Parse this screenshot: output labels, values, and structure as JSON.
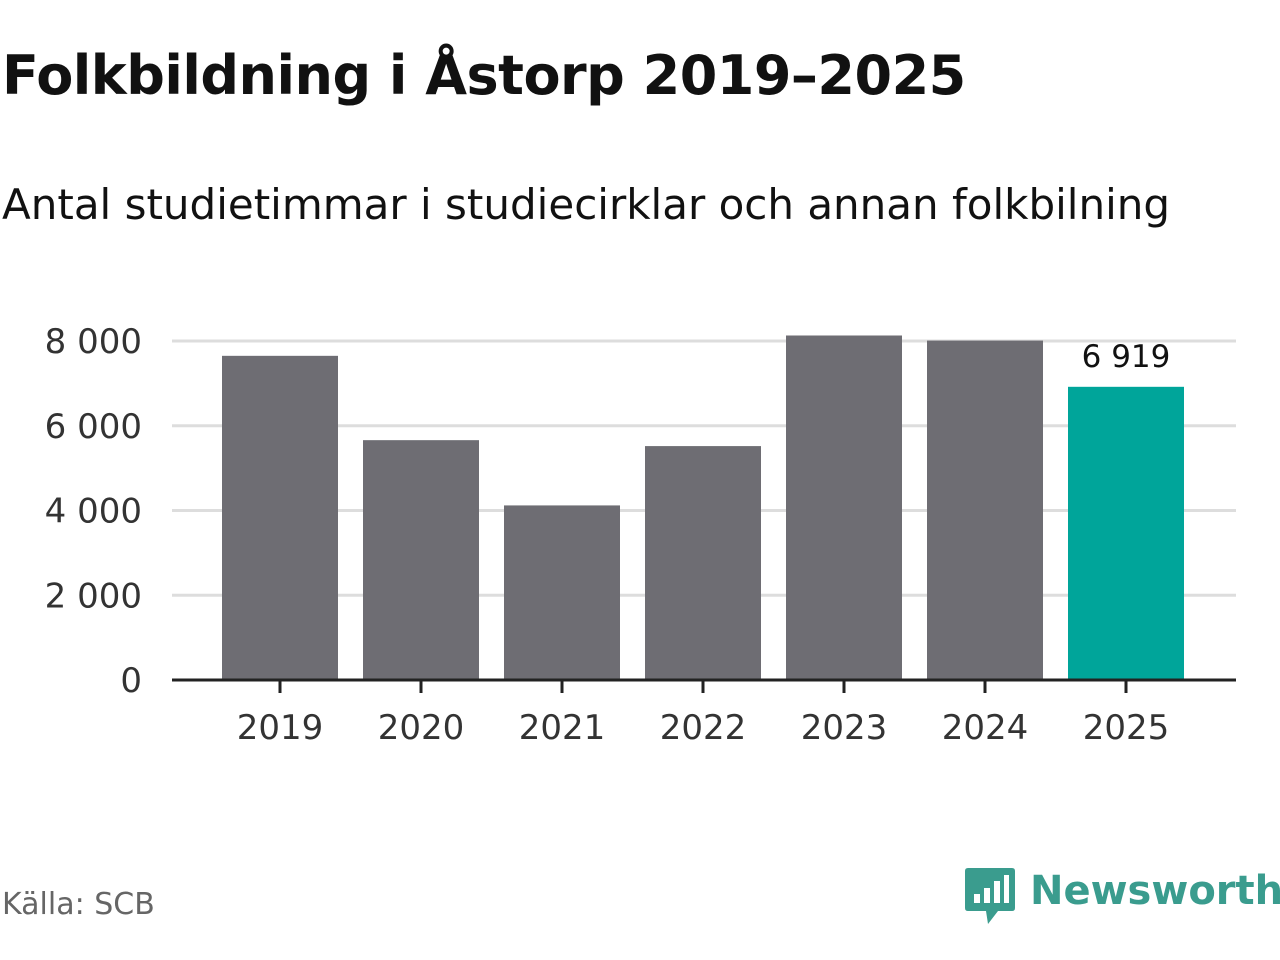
{
  "title": "Folkbildning i Åstorp 2019–2025",
  "subtitle": "Antal studietimmar i studiecirklar och annan folkbilning",
  "source": "Källa: SCB",
  "brand": {
    "name": "Newsworthy",
    "icon": "newsworthy-logo-icon",
    "color": "#3a9c8e"
  },
  "colors": {
    "bar": "#6e6d73",
    "highlight": "#00a59a",
    "grid": "#dddddd",
    "axis": "#222222"
  },
  "chart_data": {
    "type": "bar",
    "categories": [
      "2019",
      "2020",
      "2021",
      "2022",
      "2023",
      "2024",
      "2025"
    ],
    "values": [
      7650,
      5660,
      4120,
      5520,
      8130,
      8010,
      6919
    ],
    "highlight_index": 6,
    "data_labels": [
      {
        "index": 6,
        "text": "6 919"
      }
    ],
    "ylim": [
      0,
      8000
    ],
    "yticks": [
      0,
      2000,
      4000,
      6000,
      8000
    ],
    "ytick_labels": [
      "0",
      "2 000",
      "4 000",
      "6 000",
      "8 000"
    ],
    "grid": true,
    "legend": "none",
    "xlabel": "",
    "ylabel": ""
  }
}
